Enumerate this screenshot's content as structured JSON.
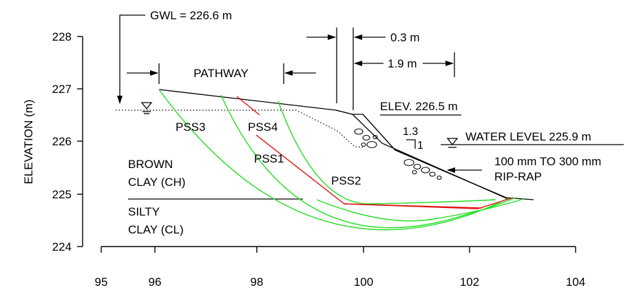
{
  "axes": {
    "ylabel": "ELEVATION (m)",
    "x_ticks": [
      "95",
      "96",
      "98",
      "100",
      "102",
      "104"
    ],
    "y_ticks": [
      "228",
      "227",
      "226",
      "225",
      "224"
    ]
  },
  "labels": {
    "gwl": "GWL = 226.6 m",
    "pathway": "PATHWAY",
    "dim_small": "0.3 m",
    "dim_large": "1.9 m",
    "elev": "ELEV. 226.5 m",
    "slope_v": "1.3",
    "slope_h": "1",
    "water_level": "WATER LEVEL 225.9 m",
    "riprap_line1": "100 mm TO 300 mm",
    "riprap_line2": "RIP-RAP",
    "brown_clay_line1": "BROWN",
    "brown_clay_line2": "CLAY (CH)",
    "silty_clay_line1": "SILTY",
    "silty_clay_line2": "CLAY (CL)",
    "pss1": "PSS1",
    "pss2": "PSS2",
    "pss3": "PSS3",
    "pss4": "PSS4"
  },
  "colors": {
    "circular_surface": "#22dd22",
    "noncircular_surface": "#e01010"
  }
}
